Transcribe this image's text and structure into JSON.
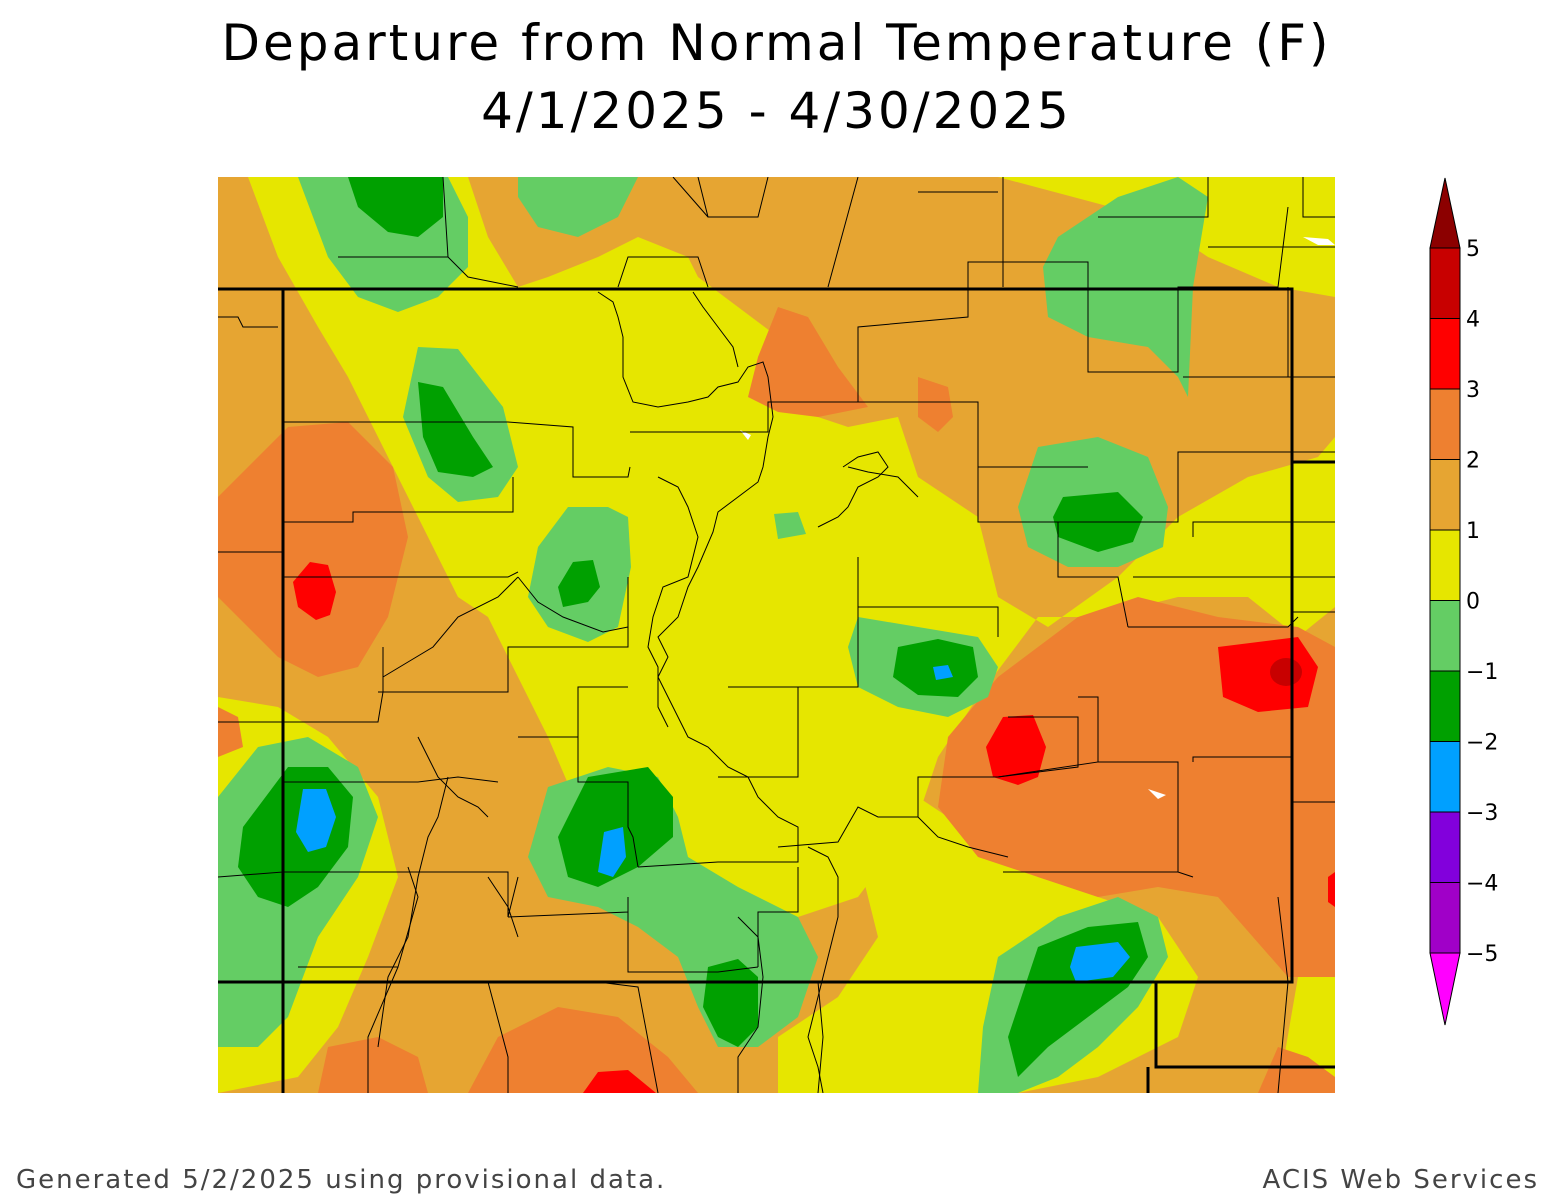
{
  "title": "Departure from Normal Temperature (F)",
  "subtitle": "4/1/2025 - 4/30/2025",
  "footer_left": "Generated 5/2/2025 using provisional data.",
  "footer_right": "ACIS Web Services",
  "legend": {
    "bins": [
      {
        "from": -5,
        "to": -4,
        "color": "#a000c8"
      },
      {
        "from": -4,
        "to": -3,
        "color": "#8200dc"
      },
      {
        "from": -3,
        "to": -2,
        "color": "#00a0ff"
      },
      {
        "from": -2,
        "to": -1,
        "color": "#00a000"
      },
      {
        "from": -1,
        "to": 0,
        "color": "#64cd64"
      },
      {
        "from": 0,
        "to": 1,
        "color": "#e6e600"
      },
      {
        "from": 1,
        "to": 2,
        "color": "#e6a532"
      },
      {
        "from": 2,
        "to": 3,
        "color": "#ee8030"
      },
      {
        "from": 3,
        "to": 4,
        "color": "#ff0000"
      },
      {
        "from": 4,
        "to": 5,
        "color": "#c80000"
      }
    ],
    "low_color": "#ff00ff",
    "high_color": "#8c0000",
    "tick_labels": [
      "5",
      "4",
      "3",
      "2",
      "1",
      "0",
      "−1",
      "−2",
      "−3",
      "−4",
      "−5"
    ]
  },
  "colors": {
    "yellow": "#e6e600",
    "gold": "#e6a532",
    "orange": "#ee8030",
    "red": "#ff0000",
    "darkred": "#c80000",
    "lightgreen": "#64cd64",
    "green": "#00a000",
    "blue": "#00a0ff"
  }
}
